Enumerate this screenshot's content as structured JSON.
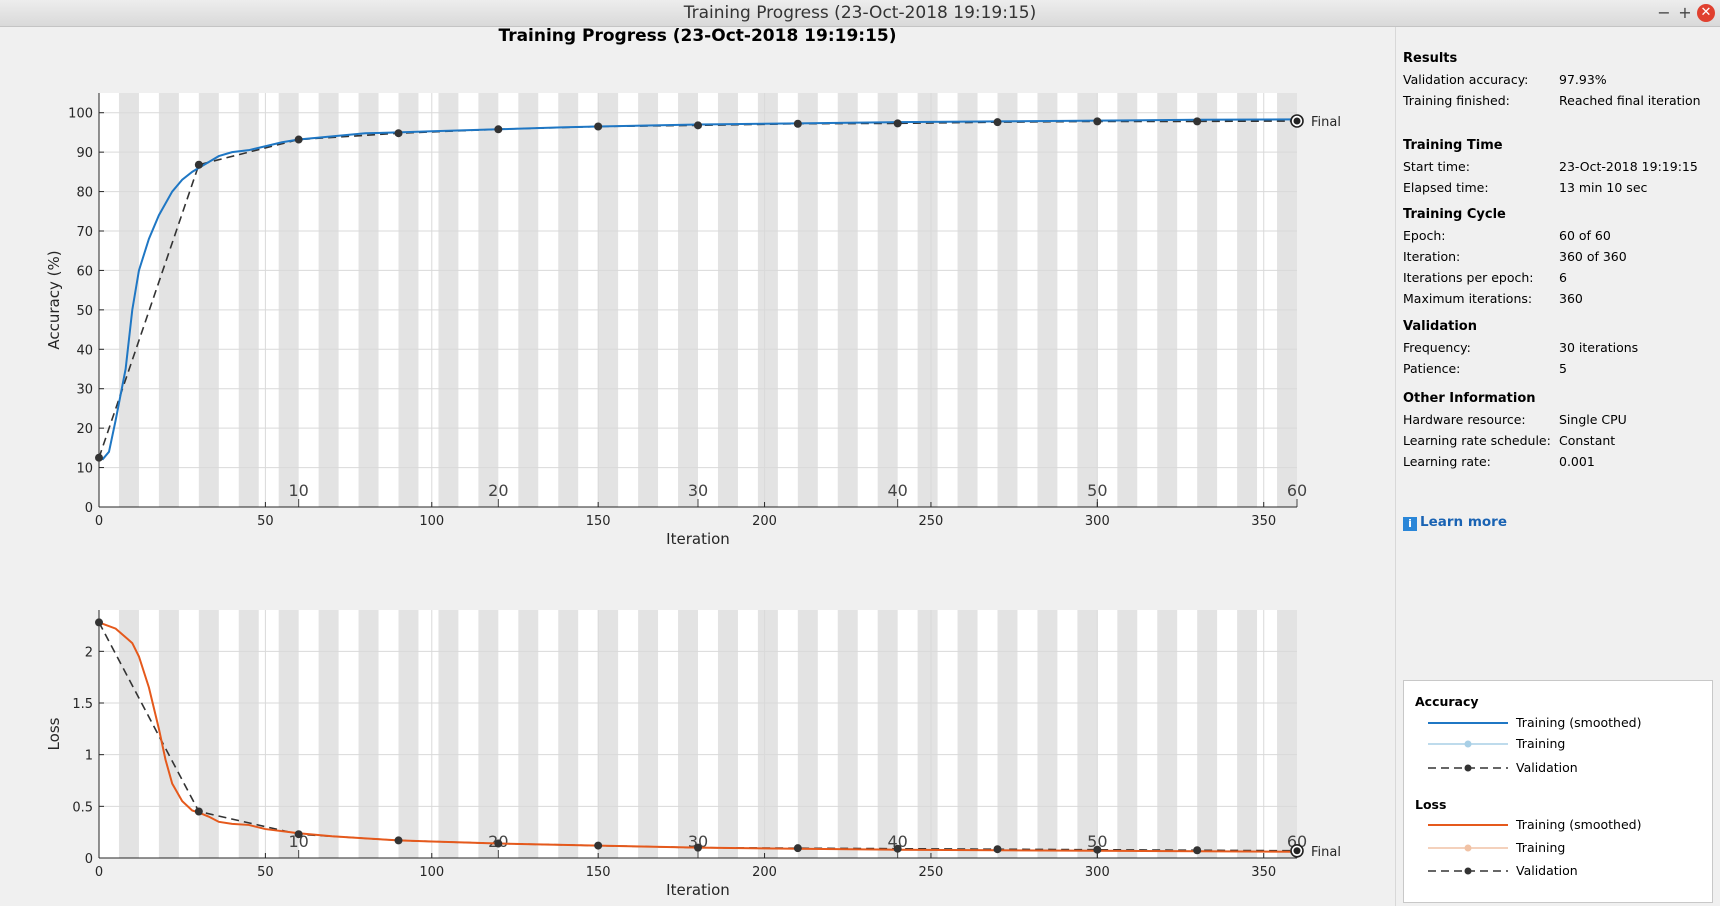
{
  "window": {
    "title": "Training Progress (23-Oct-2018 19:19:15)",
    "minimize": "−",
    "maximize": "+",
    "close": "✕"
  },
  "plot_title": "Training Progress (23-Oct-2018 19:19:15)",
  "colors": {
    "accuracy": "#1f77c4",
    "accuracy_light": "#a8cfe6",
    "loss": "#e5591c",
    "loss_light": "#f1c2a5",
    "validation": "#333333",
    "epoch_band": "#e3e3e3"
  },
  "sidebar": {
    "sections": [
      {
        "heading": "Results",
        "rows": [
          {
            "label": "Validation accuracy:",
            "value": "97.93%"
          },
          {
            "label": "Training finished:",
            "value": "Reached final iteration"
          }
        ]
      },
      {
        "heading": "Training Time",
        "rows": [
          {
            "label": "Start time:",
            "value": "23-Oct-2018 19:19:15"
          },
          {
            "label": "Elapsed time:",
            "value": "13 min 10 sec"
          }
        ]
      },
      {
        "heading": "Training Cycle",
        "rows": [
          {
            "label": "Epoch:",
            "value": "60 of 60"
          },
          {
            "label": "Iteration:",
            "value": "360 of 360"
          },
          {
            "label": "Iterations per epoch:",
            "value": "6"
          },
          {
            "label": "Maximum iterations:",
            "value": "360"
          }
        ]
      },
      {
        "heading": "Validation",
        "rows": [
          {
            "label": "Frequency:",
            "value": "30 iterations"
          },
          {
            "label": "Patience:",
            "value": "5"
          }
        ]
      },
      {
        "heading": "Other Information",
        "rows": [
          {
            "label": "Hardware resource:",
            "value": "Single CPU"
          },
          {
            "label": "Learning rate schedule:",
            "value": "Constant"
          },
          {
            "label": "Learning rate:",
            "value": "0.001"
          }
        ]
      }
    ],
    "learn_more": "Learn more",
    "legend": {
      "accuracy": {
        "heading": "Accuracy",
        "items": [
          "Training (smoothed)",
          "Training",
          "Validation"
        ]
      },
      "loss": {
        "heading": "Loss",
        "items": [
          "Training (smoothed)",
          "Training",
          "Validation"
        ]
      }
    }
  },
  "chart_data": [
    {
      "type": "line",
      "xlabel": "Iteration",
      "ylabel": "Accuracy (%)",
      "xlim": [
        0,
        360
      ],
      "ylim": [
        0,
        105
      ],
      "xticks": [
        0,
        50,
        100,
        150,
        200,
        250,
        300,
        350
      ],
      "yticks": [
        0,
        10,
        20,
        30,
        40,
        50,
        60,
        70,
        80,
        90,
        100
      ],
      "epoch_labels": [
        10,
        20,
        30,
        40,
        50,
        60
      ],
      "final_label": "Final",
      "series": [
        {
          "name": "Training (smoothed)",
          "x": [
            1,
            3,
            5,
            8,
            10,
            12,
            15,
            18,
            20,
            22,
            25,
            28,
            30,
            33,
            36,
            40,
            45,
            50,
            55,
            60,
            70,
            80,
            90,
            100,
            120,
            140,
            150,
            180,
            210,
            240,
            270,
            300,
            330,
            360
          ],
          "y": [
            12,
            14,
            22,
            35,
            50,
            60,
            68,
            74,
            77,
            80,
            83,
            85,
            86,
            87.5,
            89,
            90,
            90.5,
            91.5,
            92.5,
            93.2,
            94,
            94.8,
            95,
            95.3,
            95.8,
            96.3,
            96.5,
            97,
            97.3,
            97.6,
            97.8,
            98,
            98.2,
            98.3
          ]
        },
        {
          "name": "Validation",
          "x": [
            0,
            30,
            60,
            90,
            120,
            150,
            180,
            210,
            240,
            270,
            300,
            330,
            360
          ],
          "y": [
            12.5,
            86.8,
            93.2,
            94.8,
            95.8,
            96.5,
            96.8,
            97.2,
            97.3,
            97.6,
            97.8,
            97.8,
            97.9
          ]
        }
      ]
    },
    {
      "type": "line",
      "xlabel": "Iteration",
      "ylabel": "Loss",
      "xlim": [
        0,
        360
      ],
      "ylim": [
        0,
        2.4
      ],
      "xticks": [
        0,
        50,
        100,
        150,
        200,
        250,
        300,
        350
      ],
      "yticks": [
        0,
        0.5,
        1,
        1.5,
        2
      ],
      "epoch_labels": [
        10,
        20,
        30,
        40,
        50,
        60
      ],
      "final_label": "Final",
      "series": [
        {
          "name": "Training (smoothed)",
          "x": [
            0,
            5,
            10,
            12,
            15,
            18,
            20,
            22,
            25,
            28,
            30,
            33,
            36,
            40,
            45,
            50,
            60,
            70,
            80,
            90,
            100,
            120,
            150,
            180,
            210,
            240,
            270,
            300,
            330,
            360
          ],
          "y": [
            2.28,
            2.22,
            2.08,
            1.95,
            1.65,
            1.25,
            0.95,
            0.72,
            0.55,
            0.46,
            0.44,
            0.4,
            0.35,
            0.33,
            0.32,
            0.28,
            0.24,
            0.21,
            0.19,
            0.17,
            0.16,
            0.14,
            0.12,
            0.1,
            0.09,
            0.08,
            0.075,
            0.07,
            0.065,
            0.06
          ]
        },
        {
          "name": "Validation",
          "x": [
            0,
            30,
            60,
            90,
            120,
            150,
            180,
            210,
            240,
            270,
            300,
            330,
            360
          ],
          "y": [
            2.28,
            0.45,
            0.23,
            0.17,
            0.14,
            0.12,
            0.1,
            0.095,
            0.09,
            0.085,
            0.08,
            0.075,
            0.07
          ]
        }
      ]
    }
  ]
}
